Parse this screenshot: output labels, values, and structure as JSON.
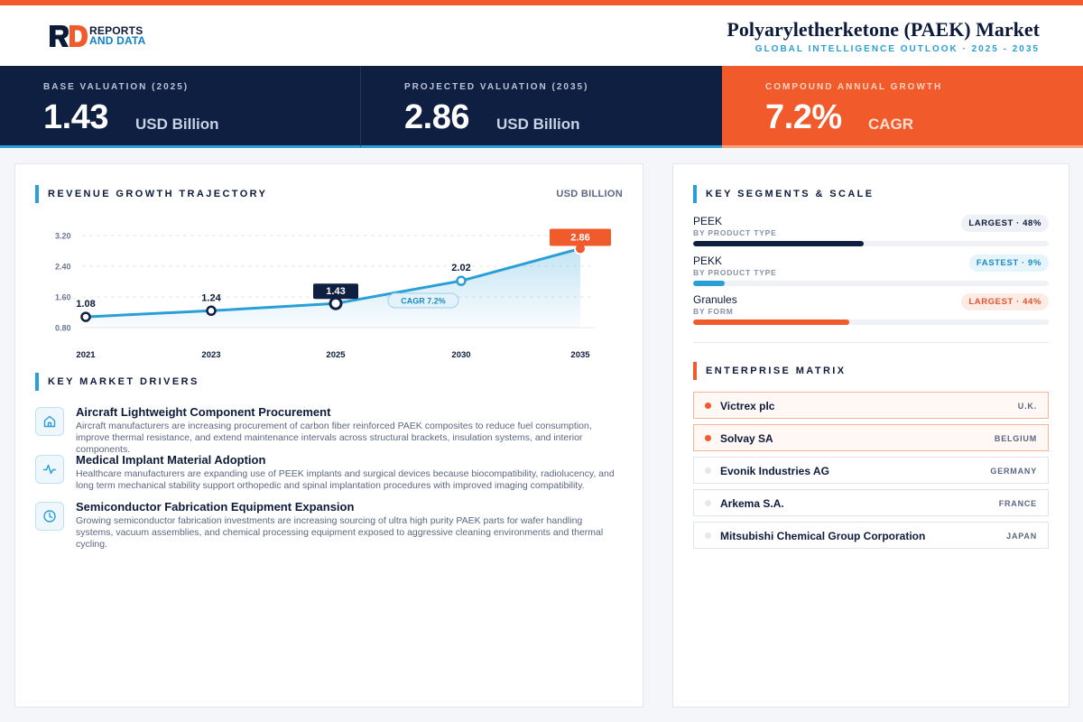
{
  "header": {
    "logo_line1": "REPORTS",
    "logo_line2": "AND DATA",
    "title": "Polyaryletherketone (PAEK) Market",
    "subtitle": "GLOBAL INTELLIGENCE OUTLOOK  ·  2025 - 2035"
  },
  "kpis": [
    {
      "label": "BASE VALUATION (2025)",
      "value": "1.43",
      "unit": "USD Billion"
    },
    {
      "label": "PROJECTED VALUATION (2035)",
      "value": "2.86",
      "unit": "USD Billion"
    },
    {
      "label": "COMPOUND ANNUAL GROWTH",
      "value": "7.2%",
      "unit": "CAGR"
    }
  ],
  "revenue": {
    "heading": "REVENUE GROWTH TRAJECTORY",
    "unit": "USD BILLION",
    "cagr_label": "CAGR 7.2%"
  },
  "chart_data": {
    "type": "area",
    "categories": [
      "2021",
      "2023",
      "2025",
      "2030",
      "2035"
    ],
    "values": [
      1.08,
      1.24,
      1.43,
      2.02,
      2.86
    ],
    "data_labels": [
      "1.08",
      "1.24",
      "1.43",
      "2.02",
      "2.86"
    ],
    "yticks": [
      "3.20",
      "2.40",
      "1.60",
      "0.80"
    ],
    "ylim": [
      0.8,
      3.2
    ],
    "grid": true,
    "highlight": {
      "2025": "base",
      "2035": "projected"
    },
    "colors": {
      "line": "#2a9fd6",
      "base": "#0f1f42",
      "projected": "#f15a2a"
    }
  },
  "drivers": {
    "heading": "KEY MARKET DRIVERS",
    "items": [
      {
        "icon": "building-icon",
        "title": "Aircraft Lightweight Component Procurement",
        "desc": "Aircraft manufacturers are increasing procurement of carbon fiber reinforced PAEK composites to reduce fuel consumption, improve thermal resistance, and extend maintenance intervals across structural brackets, insulation systems, and interior components."
      },
      {
        "icon": "pulse-icon",
        "title": "Medical Implant Material Adoption",
        "desc": "Healthcare manufacturers are expanding use of PEEK implants and surgical devices because biocompatibility, radiolucency, and long term mechanical stability support orthopedic and spinal implantation procedures with improved imaging compatibility."
      },
      {
        "icon": "clock-icon",
        "title": "Semiconductor Fabrication Equipment Expansion",
        "desc": "Growing semiconductor fabrication investments are increasing sourcing of ultra high purity PAEK parts for wafer handling systems, vacuum assemblies, and chemical processing equipment exposed to aggressive cleaning environments and thermal cycling."
      }
    ]
  },
  "segments": {
    "heading": "KEY SEGMENTS & SCALE",
    "items": [
      {
        "name": "PEEK",
        "sub": "BY PRODUCT TYPE",
        "badge": "LARGEST · 48%",
        "share": 0.48,
        "color": "#0f1f42",
        "badge_bg": "#eef1f5",
        "badge_fg": "#0d1b3a"
      },
      {
        "name": "PEKK",
        "sub": "BY PRODUCT TYPE",
        "badge": "FASTEST · 9%",
        "share": 0.09,
        "color": "#2a9fd6",
        "badge_bg": "#e6f4fb",
        "badge_fg": "#1a8cc4"
      },
      {
        "name": "Granules",
        "sub": "BY FORM",
        "badge": "LARGEST · 44%",
        "share": 0.44,
        "color": "#f15a2a",
        "badge_bg": "#fdece5",
        "badge_fg": "#e2542a"
      }
    ]
  },
  "enterprise": {
    "heading": "ENTERPRISE MATRIX",
    "items": [
      {
        "name": "Victrex plc",
        "country": "U.K.",
        "highlight": true
      },
      {
        "name": "Solvay SA",
        "country": "BELGIUM",
        "highlight": true
      },
      {
        "name": "Evonik Industries AG",
        "country": "GERMANY",
        "highlight": false
      },
      {
        "name": "Arkema S.A.",
        "country": "FRANCE",
        "highlight": false
      },
      {
        "name": "Mitsubishi Chemical Group Corporation",
        "country": "JAPAN",
        "highlight": false
      }
    ]
  }
}
